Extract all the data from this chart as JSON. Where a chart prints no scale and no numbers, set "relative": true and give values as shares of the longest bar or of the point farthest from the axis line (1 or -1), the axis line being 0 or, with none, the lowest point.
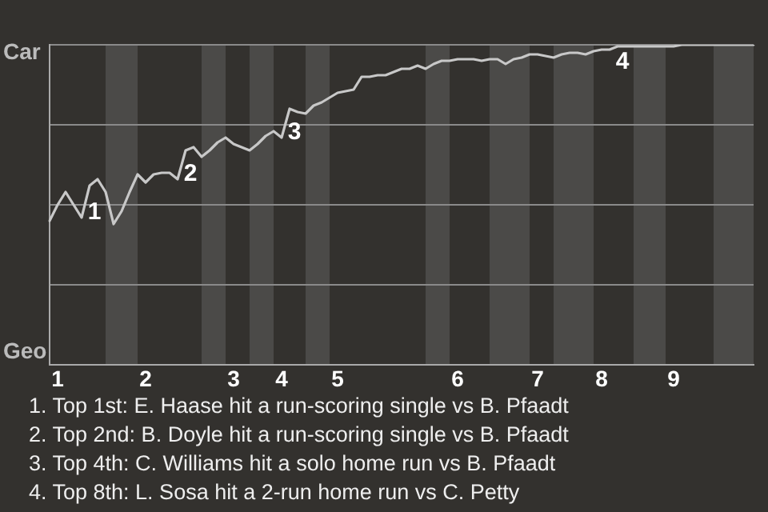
{
  "chart_data": {
    "type": "line",
    "relative": true,
    "categories": [
      null,
      "1",
      null,
      null,
      null,
      null,
      null,
      null,
      null,
      null,
      null,
      null,
      "2",
      null,
      null,
      null,
      null,
      null,
      null,
      null,
      null,
      null,
      null,
      "3",
      null,
      null,
      null,
      null,
      null,
      "4",
      null,
      null,
      null,
      null,
      null,
      null,
      "5",
      null,
      null,
      null,
      null,
      null,
      null,
      null,
      null,
      null,
      null,
      null,
      null,
      null,
      null,
      "6",
      null,
      null,
      null,
      null,
      null,
      null,
      null,
      null,
      null,
      "7",
      null,
      null,
      null,
      null,
      null,
      null,
      null,
      "8",
      null,
      null,
      null,
      null,
      null,
      null,
      null,
      null,
      "9",
      null,
      null,
      null,
      null,
      null,
      null,
      null,
      null,
      null,
      null
    ],
    "series": [
      {
        "color": "#c8c8c8",
        "values": [
          0.45,
          0.5,
          0.54,
          0.5,
          0.46,
          0.56,
          0.58,
          0.54,
          0.44,
          0.48,
          0.54,
          0.595,
          0.57,
          0.595,
          0.6,
          0.6,
          0.58,
          0.67,
          0.68,
          0.65,
          0.67,
          0.695,
          0.71,
          0.69,
          0.68,
          0.67,
          0.69,
          0.715,
          0.73,
          0.71,
          0.8,
          0.79,
          0.785,
          0.81,
          0.82,
          0.835,
          0.85,
          0.855,
          0.86,
          0.9,
          0.9,
          0.905,
          0.905,
          0.915,
          0.925,
          0.925,
          0.935,
          0.925,
          0.94,
          0.95,
          0.95,
          0.955,
          0.955,
          0.955,
          0.95,
          0.955,
          0.955,
          0.94,
          0.955,
          0.96,
          0.97,
          0.97,
          0.965,
          0.96,
          0.97,
          0.975,
          0.975,
          0.97,
          0.98,
          0.985,
          0.985,
          0.995,
          0.995,
          0.995,
          0.995,
          0.995,
          0.995,
          0.995,
          0.995,
          1,
          1,
          1,
          1,
          1,
          1,
          1,
          1,
          1,
          1
        ]
      }
    ],
    "grid": "y",
    "marker": "none",
    "line_style": "solid",
    "annotations": [
      "Car",
      "Geo",
      "1",
      "2",
      "3",
      "4",
      "1. Top 1st: E. Haase hit a run-scoring single vs B. Pfaadt",
      "2. Top 2nd: B. Doyle hit a run-scoring single vs B. Pfaadt",
      "3. Top 4th: C. Williams hit a solo home run vs B. Pfaadt",
      "4. Top 8th: L. Sosa hit a 2-run home run vs C. Petty"
    ]
  }
}
